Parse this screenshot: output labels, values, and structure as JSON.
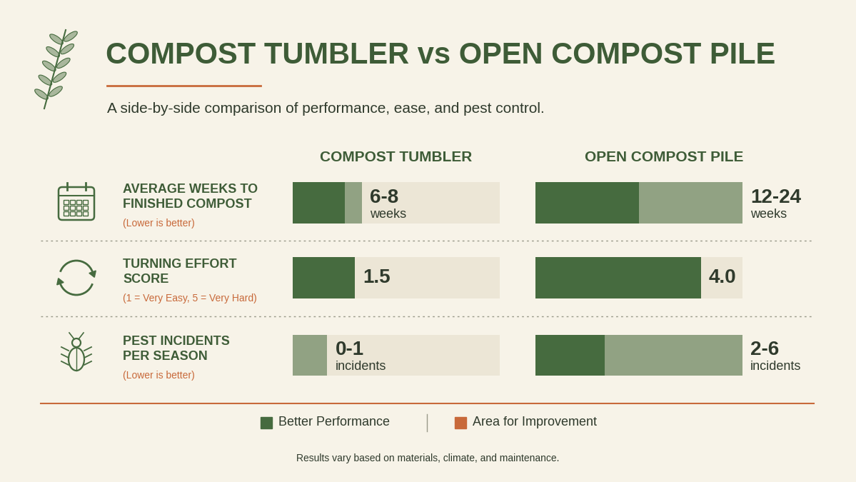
{
  "title": "COMPOST TUMBLER vs OPEN COMPOST PILE",
  "subtitle": "A side-by-side comparison of performance, ease, and pest control.",
  "columns": [
    "COMPOST TUMBLER",
    "OPEN COMPOST PILE"
  ],
  "legend_items": [
    {
      "label": "Better Performance",
      "color": "#466b3f"
    },
    {
      "label": "Area for Improvement",
      "color": "#c8693a"
    }
  ],
  "footer": "Results vary based on materials, climate, and maintenance.",
  "chart_data": [
    {
      "type": "bar",
      "orientation": "horizontal",
      "title": "AVERAGE WEEKS TO\nFINISHED COMPOST",
      "subtitle": "(Lower is better)",
      "xlim": [
        0,
        24
      ],
      "tick_labels": false,
      "data_labels": true,
      "colors": [
        "#466b3f",
        "#466b3f"
      ],
      "values": [
        {
          "low": 6,
          "high": 8,
          "label": "6-8",
          "unit": "weeks"
        },
        {
          "low": 12,
          "high": 24,
          "label": "12-24",
          "unit": "weeks"
        }
      ]
    },
    {
      "type": "bar",
      "orientation": "horizontal",
      "title": "TURNING EFFORT\nSCORE",
      "subtitle": "(1 = Very Easy, 5 = Very Hard)",
      "xlim": [
        0,
        5
      ],
      "tick_labels": false,
      "data_labels": true,
      "colors": [
        "#466b3f",
        "#466b3f"
      ],
      "values": [
        {
          "low": 1.5,
          "high": 1.5,
          "label": "1.5"
        },
        {
          "low": 4.0,
          "high": 4.0,
          "label": "4.0"
        }
      ]
    },
    {
      "type": "bar",
      "orientation": "horizontal",
      "title": "PEST INCIDENTS\nPER SEASON",
      "subtitle": "(Lower is better)",
      "xlim": [
        0,
        6
      ],
      "tick_labels": false,
      "data_labels": true,
      "colors": [
        "#466b3f",
        "#466b3f"
      ],
      "values": [
        {
          "low": 0,
          "high": 1,
          "label": "0-1",
          "unit": "incidents"
        },
        {
          "low": 2,
          "high": 6,
          "label": "2-6",
          "unit": "incidents"
        }
      ]
    }
  ]
}
